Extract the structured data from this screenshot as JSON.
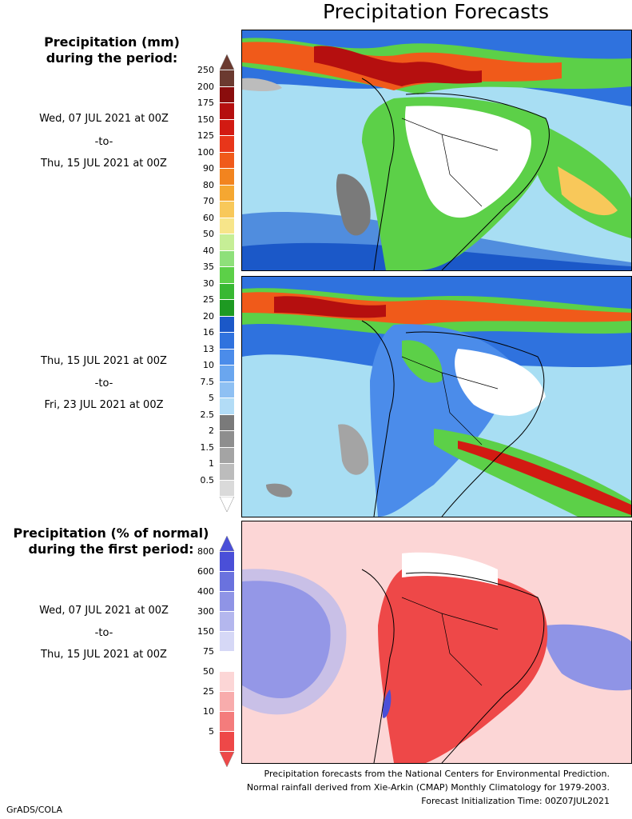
{
  "title": "Precipitation Forecasts",
  "panel_top": {
    "header_line1": "Precipitation (mm)",
    "header_line2": "during the period:",
    "p1_start": "Wed, 07 JUL 2021 at 00Z",
    "p1_to": "-to-",
    "p1_end": "Thu, 15 JUL 2021 at 00Z",
    "p2_start": "Thu, 15 JUL 2021 at 00Z",
    "p2_to": "-to-",
    "p2_end": "Fri, 23 JUL 2021 at 00Z",
    "scale_labels": [
      "250",
      "200",
      "175",
      "150",
      "125",
      "100",
      "90",
      "80",
      "70",
      "60",
      "50",
      "40",
      "35",
      "30",
      "25",
      "20",
      "16",
      "13",
      "10",
      "7.5",
      "5",
      "2.5",
      "2",
      "1.5",
      "1",
      "0.5"
    ],
    "scale_colors": [
      "#6b3a30",
      "#8a0d0d",
      "#b50f0f",
      "#d21a12",
      "#e8361a",
      "#f05a1a",
      "#f2841f",
      "#f5a731",
      "#f8c85a",
      "#f7e58a",
      "#c6ee96",
      "#8ee07a",
      "#5cd048",
      "#38b832",
      "#1e9a22",
      "#1b58c8",
      "#2f72de",
      "#4b8cea",
      "#6aa6ef",
      "#8ec0f3",
      "#b2dcf6",
      "#7a7a7a",
      "#8e8e8e",
      "#a4a4a4",
      "#bcbcbc",
      "#dadada"
    ]
  },
  "panel_bottom": {
    "header_line1": "Precipitation (% of normal)",
    "header_line2": "during the first period:",
    "p_start": "Wed, 07 JUL 2021 at 00Z",
    "p_to": "-to-",
    "p_end": "Thu, 15 JUL 2021 at 00Z",
    "scale_labels": [
      "800",
      "600",
      "400",
      "300",
      "150",
      "75",
      "50",
      "25",
      "10",
      "5"
    ],
    "scale_colors": [
      "#4a4fd8",
      "#6a72de",
      "#8f94e6",
      "#b4b7ee",
      "#d6d8f6",
      "#ffffff",
      "#fcd6d6",
      "#f8acac",
      "#f47c7c",
      "#ee4848"
    ]
  },
  "footer": {
    "line1": "Precipitation forecasts from the National Centers for Environmental Prediction.",
    "line2": "Normal rainfall derived from Xie-Arkin (CMAP) Monthly Climatology for 1979-2003.",
    "line3": "Forecast Initialization Time: 00Z07JUL2021"
  },
  "credit": "GrADS/COLA"
}
